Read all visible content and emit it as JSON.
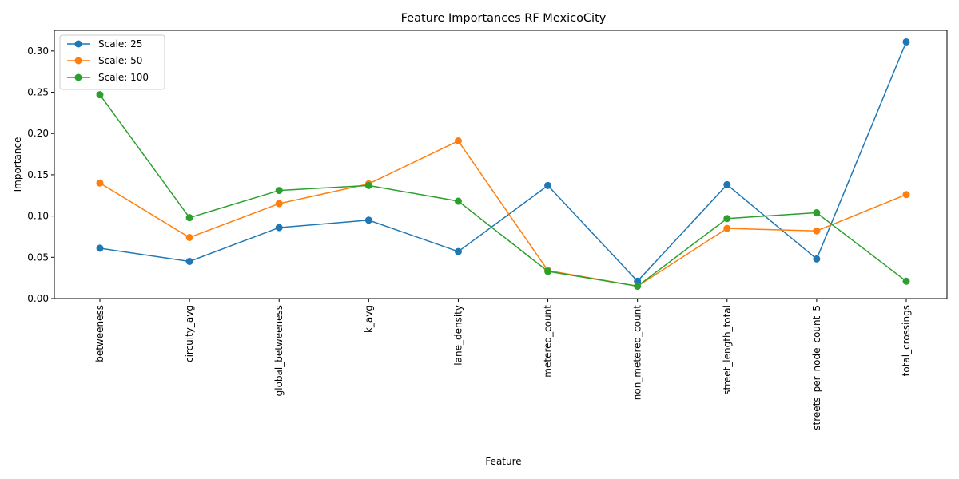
{
  "chart_data": {
    "type": "line",
    "title": "Feature Importances RF MexicoCity",
    "xlabel": "Feature",
    "ylabel": "Importance",
    "categories": [
      "betweeness",
      "circuity_avg",
      "global_betweeness",
      "k_avg",
      "lane_density",
      "metered_count",
      "non_metered_count",
      "street_length_total",
      "streets_per_node_count_5",
      "total_crossings"
    ],
    "ylim": [
      0.0,
      0.325
    ],
    "yticks": [
      0.0,
      0.05,
      0.1,
      0.15,
      0.2,
      0.25,
      0.3
    ],
    "ytick_labels": [
      "0.00",
      "0.05",
      "0.10",
      "0.15",
      "0.20",
      "0.25",
      "0.30"
    ],
    "grid": false,
    "legend_position": "top-left",
    "series": [
      {
        "name": "Scale: 25",
        "color": "#1f77b4",
        "values": [
          0.061,
          0.045,
          0.086,
          0.095,
          0.057,
          0.137,
          0.021,
          0.138,
          0.048,
          0.311
        ]
      },
      {
        "name": "Scale: 50",
        "color": "#ff7f0e",
        "values": [
          0.14,
          0.074,
          0.115,
          0.139,
          0.191,
          0.034,
          0.015,
          0.085,
          0.082,
          0.126
        ]
      },
      {
        "name": "Scale: 100",
        "color": "#2ca02c",
        "values": [
          0.247,
          0.098,
          0.131,
          0.137,
          0.118,
          0.033,
          0.015,
          0.097,
          0.104,
          0.021
        ]
      }
    ]
  }
}
